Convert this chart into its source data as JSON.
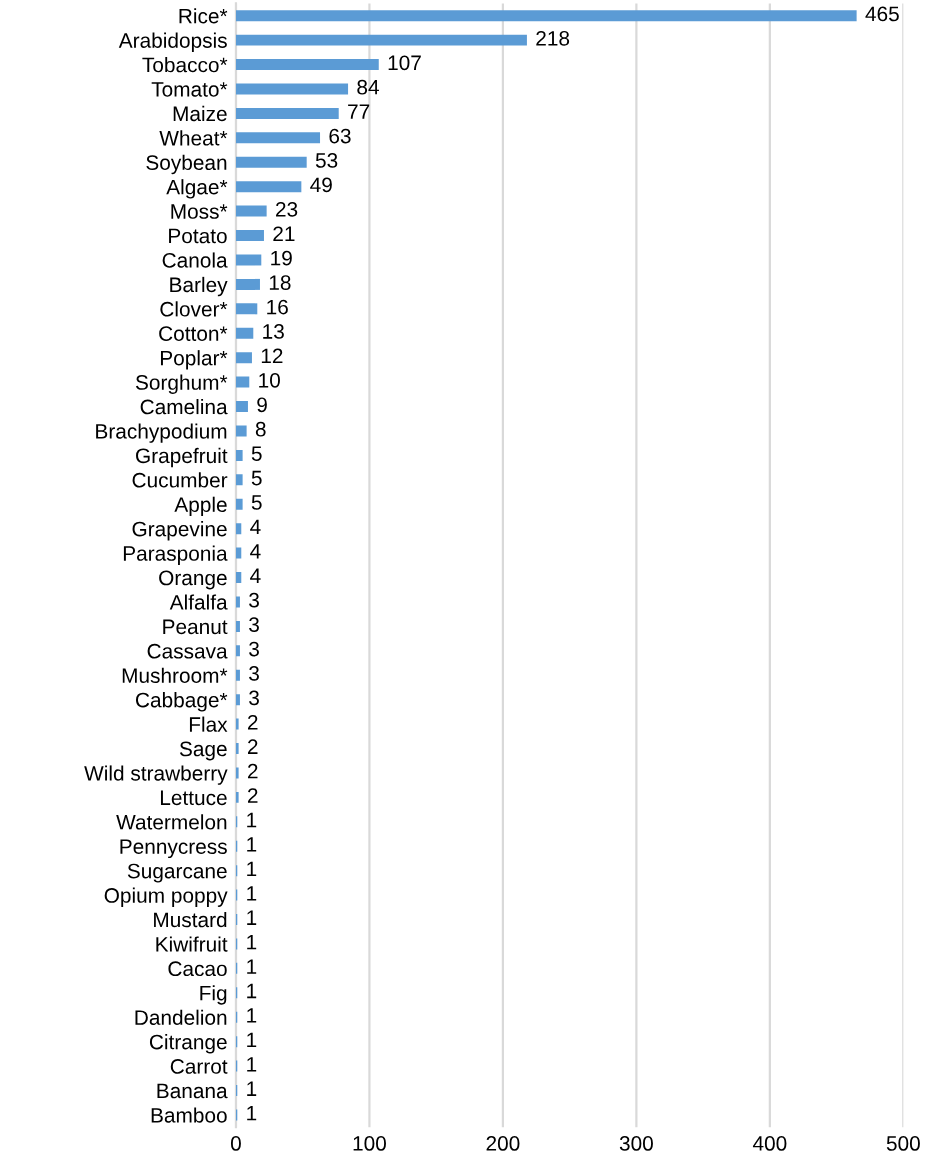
{
  "chart_data": {
    "type": "bar",
    "orientation": "horizontal",
    "categories": [
      "Rice*",
      "Arabidopsis",
      "Tobacco*",
      "Tomato*",
      "Maize",
      "Wheat*",
      "Soybean",
      "Algae*",
      "Moss*",
      "Potato",
      "Canola",
      "Barley",
      "Clover*",
      "Cotton*",
      "Poplar*",
      "Sorghum*",
      "Camelina",
      "Brachypodium",
      "Grapefruit",
      "Cucumber",
      "Apple",
      "Grapevine",
      "Parasponia",
      "Orange",
      "Alfalfa",
      "Peanut",
      "Cassava",
      "Mushroom*",
      "Cabbage*",
      "Flax",
      "Sage",
      "Wild strawberry",
      "Lettuce",
      "Watermelon",
      "Pennycress",
      "Sugarcane",
      "Opium poppy",
      "Mustard",
      "Kiwifruit",
      "Cacao",
      "Fig",
      "Dandelion",
      "Citrange",
      "Carrot",
      "Banana",
      "Bamboo"
    ],
    "values": [
      465,
      218,
      107,
      84,
      77,
      63,
      53,
      49,
      23,
      21,
      19,
      18,
      16,
      13,
      12,
      10,
      9,
      8,
      5,
      5,
      5,
      4,
      4,
      4,
      3,
      3,
      3,
      3,
      3,
      2,
      2,
      2,
      2,
      1,
      1,
      1,
      1,
      1,
      1,
      1,
      1,
      1,
      1,
      1,
      1,
      1
    ],
    "color": "#5b9bd5",
    "xlim": [
      0,
      500
    ],
    "xticks": [
      0,
      100,
      200,
      300,
      400,
      500
    ],
    "grid": "x",
    "data_labels": true
  }
}
